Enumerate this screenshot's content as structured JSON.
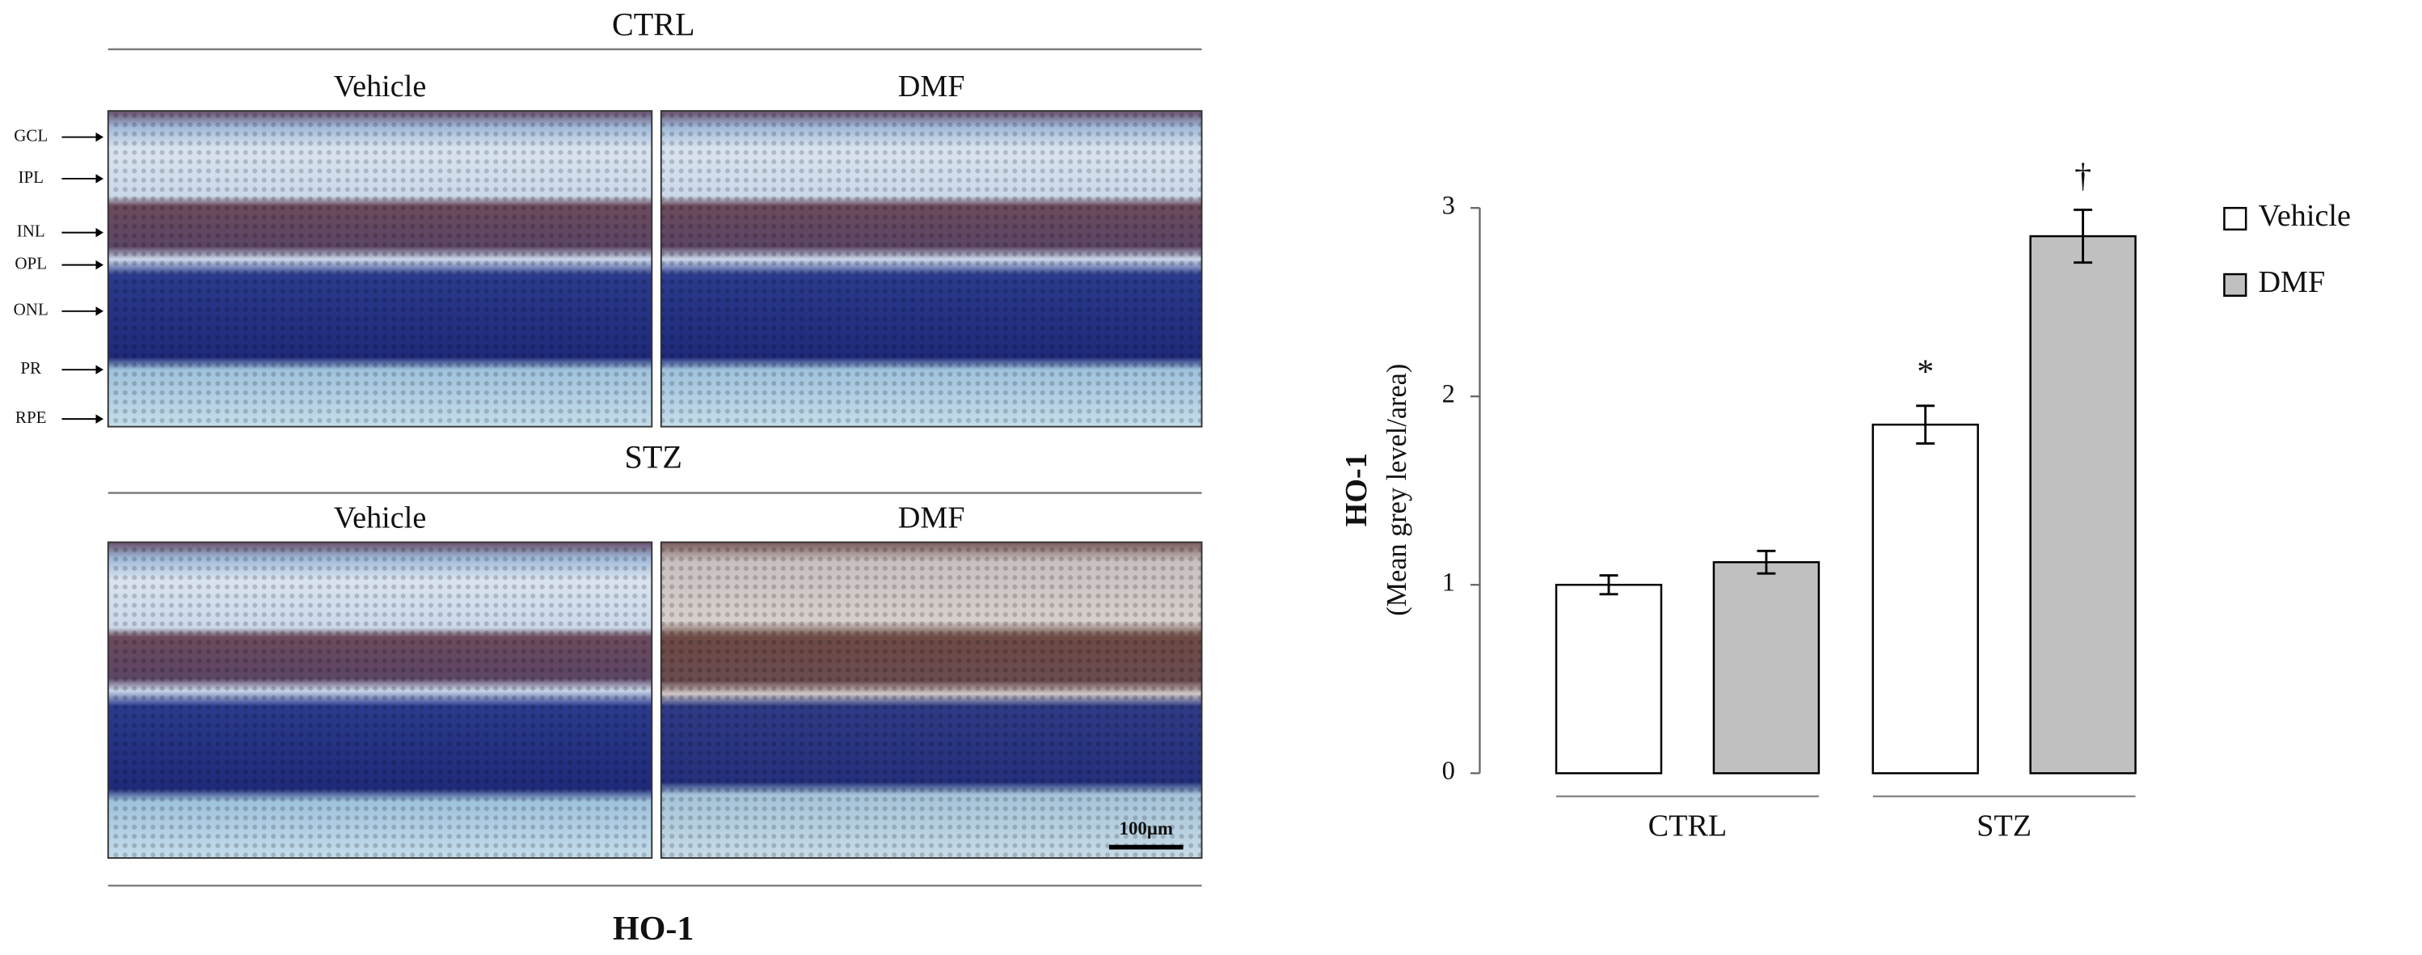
{
  "figure": {
    "caption": "HO-1",
    "scale_bar": "100μm",
    "layers": [
      "GCL",
      "IPL",
      "INL",
      "OPL",
      "ONL",
      "PR",
      "RPE"
    ],
    "rows": [
      {
        "title": "CTRL",
        "columns": [
          "Vehicle",
          "DMF"
        ]
      },
      {
        "title": "STZ",
        "columns": [
          "Vehicle",
          "DMF"
        ]
      }
    ]
  },
  "chart_data": {
    "type": "bar",
    "ylabel": "HO-1",
    "ylabel_sub": "(Mean grey level/area)",
    "categories": [
      "CTRL",
      "STZ"
    ],
    "series": [
      {
        "name": "Vehicle",
        "color": "#ffffff",
        "values": [
          1.0,
          1.85
        ],
        "errors": [
          0.05,
          0.1
        ],
        "markers": [
          null,
          "*"
        ]
      },
      {
        "name": "DMF",
        "color": "#c0c0c0",
        "values": [
          1.12,
          2.85
        ],
        "errors": [
          0.06,
          0.14
        ],
        "markers": [
          null,
          "†"
        ]
      }
    ],
    "ylim": [
      0,
      3
    ],
    "yticks": [
      0,
      1,
      2,
      3
    ],
    "grid": false
  }
}
